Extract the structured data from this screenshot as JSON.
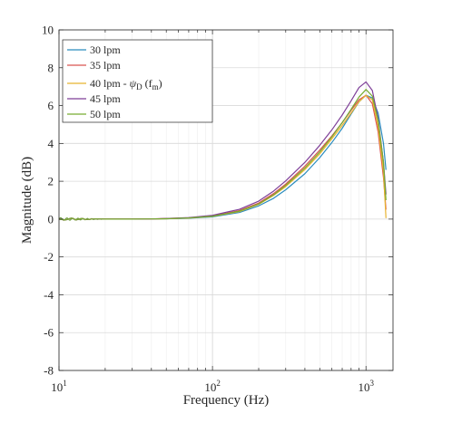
{
  "chart_data": {
    "type": "line",
    "title": "",
    "xlabel": "Frequency (Hz)",
    "ylabel": "Magnitude (dB)",
    "xscale": "log",
    "xlim": [
      10,
      1500
    ],
    "ylim": [
      -8,
      10
    ],
    "grid": true,
    "legend_position": "top-left",
    "x_ticks": [
      10,
      100,
      1000
    ],
    "x_tick_labels": [
      {
        "base": "10",
        "exp": "1"
      },
      {
        "base": "10",
        "exp": "2"
      },
      {
        "base": "10",
        "exp": "3"
      }
    ],
    "y_ticks": [
      -8,
      -6,
      -4,
      -2,
      0,
      2,
      4,
      6,
      8,
      10
    ],
    "y_tick_labels": [
      "-8",
      "-6",
      "-4",
      "-2",
      "0",
      "2",
      "4",
      "6",
      "8",
      "10"
    ],
    "legend_entries": [
      {
        "name": "30 lpm",
        "symbol": "",
        "sub": "",
        "paren": ""
      },
      {
        "name": "35 lpm",
        "symbol": "",
        "sub": "",
        "paren": ""
      },
      {
        "name": "40 lpm - ",
        "symbol": "ψ",
        "sub": "D",
        "paren": "f_m"
      },
      {
        "name": "45 lpm",
        "symbol": "",
        "sub": "",
        "paren": ""
      },
      {
        "name": "50 lpm",
        "symbol": "",
        "sub": "",
        "paren": ""
      }
    ],
    "x": [
      10,
      11,
      12,
      13,
      14,
      15,
      17,
      20,
      25,
      30,
      40,
      50,
      70,
      100,
      150,
      200,
      250,
      300,
      400,
      500,
      600,
      700,
      800,
      900,
      1000,
      1100,
      1200,
      1300,
      1350
    ],
    "series": [
      {
        "name": "30 lpm",
        "color": "#2b8cbe",
        "values": [
          0,
          -0.05,
          0.05,
          -0.04,
          0.03,
          -0.02,
          0.01,
          0,
          0,
          0,
          0.01,
          0.02,
          0.05,
          0.12,
          0.35,
          0.7,
          1.1,
          1.55,
          2.4,
          3.25,
          4.05,
          4.8,
          5.55,
          6.2,
          6.55,
          6.4,
          5.6,
          4.0,
          2.6
        ]
      },
      {
        "name": "35 lpm",
        "color": "#d9534f",
        "values": [
          0,
          -0.05,
          0.05,
          -0.04,
          0.03,
          -0.02,
          0.01,
          0,
          0,
          0,
          0.01,
          0.03,
          0.07,
          0.17,
          0.45,
          0.85,
          1.35,
          1.85,
          2.8,
          3.65,
          4.4,
          5.1,
          5.75,
          6.3,
          6.55,
          6.1,
          4.6,
          2.2,
          0.5
        ]
      },
      {
        "name": "40 lpm - ψD (fm)",
        "color": "#e8b32f",
        "values": [
          0,
          -0.05,
          0.05,
          -0.04,
          0.03,
          -0.02,
          0.01,
          0,
          0,
          0,
          0.01,
          0.02,
          0.06,
          0.14,
          0.4,
          0.78,
          1.25,
          1.72,
          2.62,
          3.45,
          4.25,
          4.95,
          5.6,
          6.2,
          6.55,
          6.3,
          4.9,
          2.5,
          0.05
        ]
      },
      {
        "name": "45 lpm",
        "color": "#7e3f98",
        "values": [
          0,
          -0.05,
          0.05,
          -0.04,
          0.03,
          -0.02,
          0.01,
          0,
          0,
          0,
          0.01,
          0.03,
          0.08,
          0.2,
          0.52,
          0.95,
          1.48,
          2.02,
          3.0,
          3.9,
          4.72,
          5.5,
          6.25,
          6.95,
          7.25,
          6.8,
          5.3,
          3.0,
          1.3
        ]
      },
      {
        "name": "50 lpm",
        "color": "#77ac30",
        "values": [
          0,
          -0.05,
          0.05,
          -0.04,
          0.03,
          -0.02,
          0.01,
          0,
          0,
          0,
          0.01,
          0.02,
          0.06,
          0.15,
          0.42,
          0.8,
          1.28,
          1.78,
          2.7,
          3.55,
          4.35,
          5.1,
          5.8,
          6.45,
          6.85,
          6.5,
          5.2,
          3.0,
          1.0
        ]
      }
    ]
  }
}
